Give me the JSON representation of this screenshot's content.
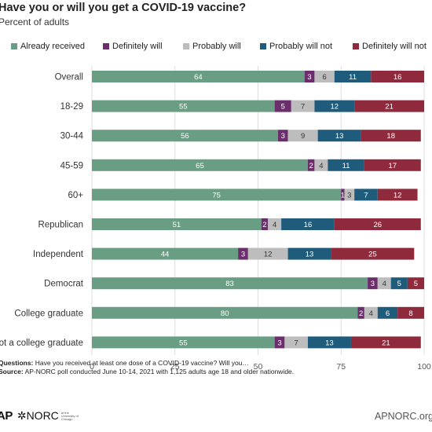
{
  "header": {
    "title": "Have you or will you get a COVID-19 vaccine?",
    "subtitle": "Percent of adults"
  },
  "colors": {
    "already_received": "#6a9e84",
    "definitely_will": "#6b2d6b",
    "probably_will": "#bdbdbd",
    "probably_will_not": "#1f5b7a",
    "definitely_will_not": "#8e2a3c",
    "grid": "#dddddd"
  },
  "chart_data": {
    "type": "bar",
    "orientation": "horizontal",
    "stacked": true,
    "title": "Have you or will you get a COVID-19 vaccine?",
    "subtitle": "Percent of adults",
    "categories": [
      "Overall",
      "18-29",
      "30-44",
      "45-59",
      "60+",
      "Republican",
      "Independent",
      "Democrat",
      "College graduate",
      "Not a college graduate"
    ],
    "series": [
      {
        "name": "Already received",
        "color_key": "already_received",
        "values": [
          64,
          55,
          56,
          65,
          75,
          51,
          44,
          83,
          80,
          55
        ]
      },
      {
        "name": "Definitely will",
        "color_key": "definitely_will",
        "values": [
          3,
          5,
          3,
          2,
          1,
          2,
          3,
          3,
          2,
          3
        ]
      },
      {
        "name": "Probably will",
        "color_key": "probably_will",
        "values": [
          6,
          7,
          9,
          4,
          3,
          4,
          12,
          4,
          4,
          7
        ]
      },
      {
        "name": "Probably will not",
        "color_key": "probably_will_not",
        "values": [
          11,
          12,
          13,
          11,
          7,
          16,
          13,
          5,
          6,
          13
        ]
      },
      {
        "name": "Definitely will not",
        "color_key": "definitely_will_not",
        "values": [
          16,
          21,
          18,
          17,
          12,
          26,
          25,
          5,
          8,
          21
        ]
      }
    ],
    "xlim": [
      0,
      100
    ],
    "xticks": [
      0,
      25,
      50,
      75,
      100
    ],
    "grid": true,
    "legend": "top"
  },
  "notes": {
    "questions_label": "Questions:",
    "questions_text": "Have you received at least one dose of a COVID-19 vaccine? Will you…",
    "source_label": "Source:",
    "source_text": "AP-NORC poll conducted June 10-14, 2021 with 1,125 adults age 18 and older nationwide."
  },
  "footer": {
    "logo_ap": "AP",
    "logo_norc": "✲NORC",
    "logo_norc_small": "at the University of Chicago",
    "website": "APNORC.org"
  }
}
